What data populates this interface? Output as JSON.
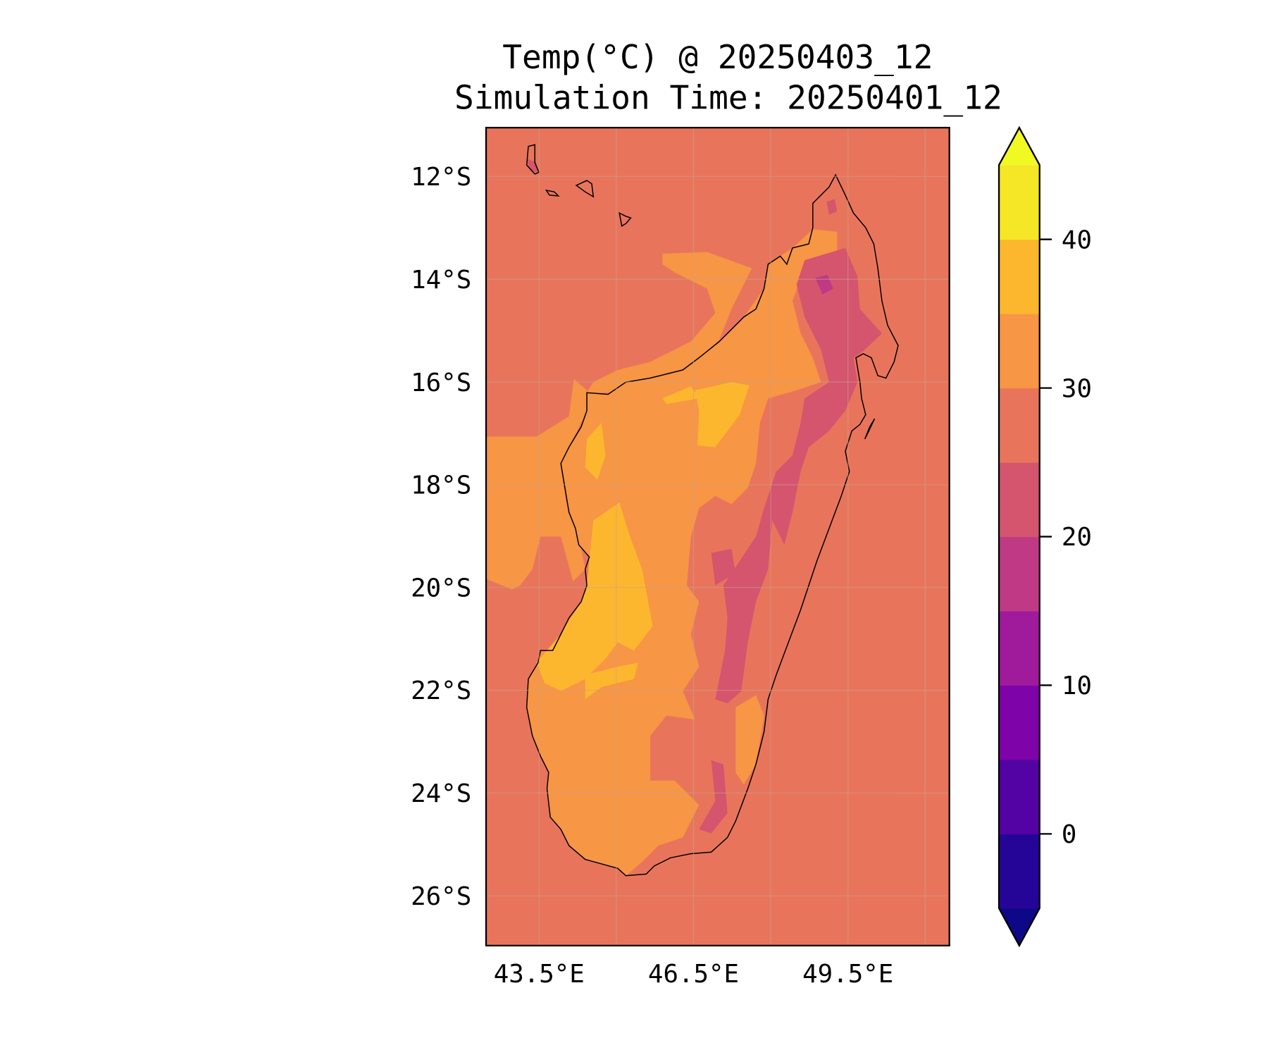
{
  "chart_data": {
    "type": "heatmap",
    "subtype": "filled-contour-map",
    "title": "Temp(°C) @ 20250403_12",
    "subtitle": "Simulation Time: 20250401_12",
    "xlabel": "",
    "ylabel": "",
    "xlim": [
      42.47,
      51.47
    ],
    "ylim": [
      -26.97,
      -11.05
    ],
    "grid": true,
    "x_ticks": [
      {
        "value": 43.5,
        "label": "43.5°E"
      },
      {
        "value": 46.5,
        "label": "46.5°E"
      },
      {
        "value": 49.5,
        "label": "49.5°E"
      }
    ],
    "x_gridlines": [
      43.5,
      45,
      46.5,
      48,
      49.5,
      51
    ],
    "y_ticks": [
      {
        "value": -12,
        "label": "12°S"
      },
      {
        "value": -14,
        "label": "14°S"
      },
      {
        "value": -16,
        "label": "16°S"
      },
      {
        "value": -18,
        "label": "18°S"
      },
      {
        "value": -20,
        "label": "20°S"
      },
      {
        "value": -22,
        "label": "22°S"
      },
      {
        "value": -24,
        "label": "24°S"
      },
      {
        "value": -26,
        "label": "26°S"
      }
    ],
    "colorbar": {
      "range": [
        -5,
        45
      ],
      "extend": "both",
      "ticks": [
        {
          "value": 0,
          "label": "0"
        },
        {
          "value": 10,
          "label": "10"
        },
        {
          "value": 20,
          "label": "20"
        },
        {
          "value": 30,
          "label": "30"
        },
        {
          "value": 40,
          "label": "40"
        }
      ],
      "levels": [
        -5,
        0,
        5,
        10,
        15,
        20,
        25,
        30,
        35,
        40,
        45
      ],
      "colors": [
        "#250597",
        "#5302a3",
        "#7e03a8",
        "#a01a9c",
        "#bf3984",
        "#d5546e",
        "#e8755b",
        "#f79644",
        "#fdb72f",
        "#f5e626"
      ],
      "under_color": "#0d0887",
      "over_color": "#f0f921"
    },
    "field_summary": {
      "ocean_background_range": [
        25,
        30
      ],
      "west_lowlands_range": [
        30,
        40
      ],
      "east_highlands_range": [
        15,
        25
      ]
    }
  }
}
